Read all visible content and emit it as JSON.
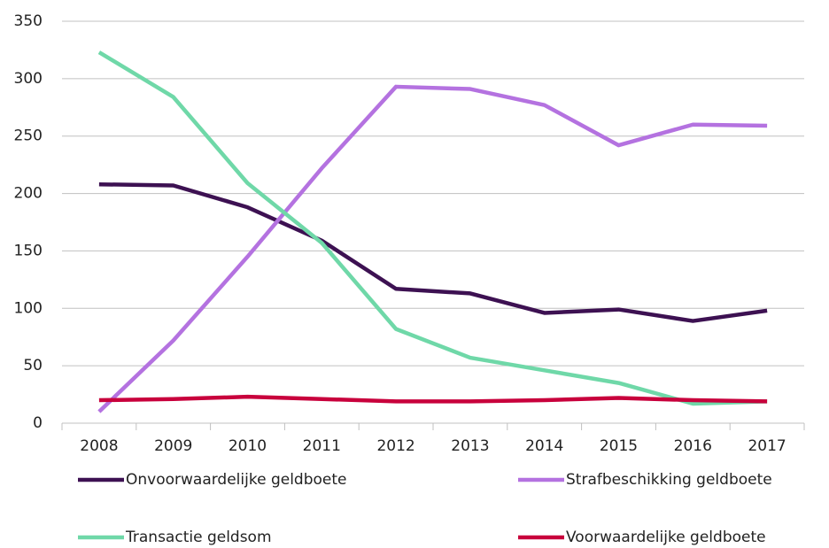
{
  "chart_data": {
    "type": "line",
    "categories": [
      "2008",
      "2009",
      "2010",
      "2011",
      "2012",
      "2013",
      "2014",
      "2015",
      "2016",
      "2017"
    ],
    "series": [
      {
        "name": "Onvoorwaardelijke geldboete",
        "color": "#3d1152",
        "values": [
          208,
          207,
          188,
          159,
          117,
          113,
          96,
          99,
          89,
          98
        ]
      },
      {
        "name": "Strafbeschikking geldboete",
        "color": "#b472e0",
        "values": [
          10,
          72,
          145,
          222,
          293,
          291,
          277,
          242,
          260,
          259
        ]
      },
      {
        "name": "Transactie geldsom",
        "color": "#6fd8a8",
        "values": [
          323,
          284,
          209,
          157,
          82,
          57,
          46,
          35,
          17,
          19
        ]
      },
      {
        "name": "Voorwaardelijke geldboete",
        "color": "#c8003c",
        "values": [
          20,
          21,
          23,
          21,
          19,
          19,
          20,
          22,
          20,
          19
        ]
      }
    ],
    "ylim": [
      0,
      350
    ],
    "yticks": [
      0,
      50,
      100,
      150,
      200,
      250,
      300,
      350
    ],
    "grid": true
  }
}
